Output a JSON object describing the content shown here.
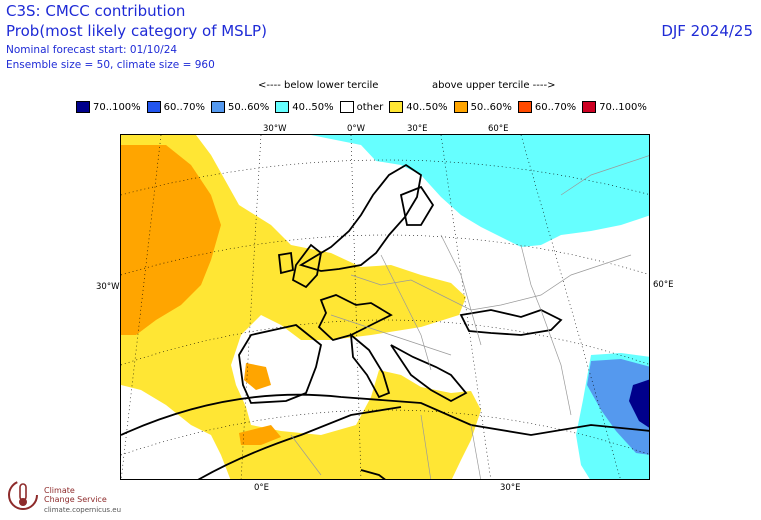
{
  "header": {
    "title": "C3S: CMCC contribution",
    "subtitle": "Prob(most likely category of MSLP)",
    "forecast_start": "Nominal forecast start: 01/10/24",
    "ensemble": "Ensemble size = 50, climate size = 960",
    "season": "DJF 2024/25"
  },
  "legend": {
    "below_label": "<---- below lower tercile",
    "above_label": "above upper tercile ---->",
    "items": [
      {
        "label": "70..100%",
        "color": "#00008b"
      },
      {
        "label": "60..70%",
        "color": "#2255ee"
      },
      {
        "label": "50..60%",
        "color": "#5599ee"
      },
      {
        "label": "40..50%",
        "color": "#66ffff"
      },
      {
        "label": "other",
        "color": "#ffffff"
      },
      {
        "label": "40..50%",
        "color": "#ffe634"
      },
      {
        "label": "50..60%",
        "color": "#ffa500"
      },
      {
        "label": "60..70%",
        "color": "#ff4a00"
      },
      {
        "label": "70..100%",
        "color": "#cc0022"
      }
    ]
  },
  "map": {
    "top_ticks": [
      "30°W",
      "0°W",
      "30°E",
      "60°E"
    ],
    "bottom_ticks": [
      "0°E",
      "30°E"
    ],
    "left_tick": "30°W",
    "right_tick": "60°E"
  },
  "logo": {
    "line1": "Climate",
    "line2": "Change Service",
    "url": "climate.copernicus.eu"
  }
}
